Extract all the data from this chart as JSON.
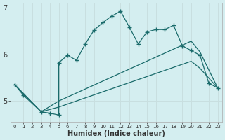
{
  "xlabel": "Humidex (Indice chaleur)",
  "bg_color": "#d4eef0",
  "line_color": "#1a6b6b",
  "grid_color": "#c8dfe0",
  "ylim": [
    4.55,
    7.1
  ],
  "xlim": [
    -0.5,
    23.5
  ],
  "yticks": [
    5,
    6,
    7
  ],
  "ytick_labels": [
    "5",
    "6",
    "7"
  ],
  "xtick_labels": [
    "0",
    "1",
    "2",
    "3",
    "4",
    "5",
    "6",
    "7",
    "8",
    "9",
    "10",
    "11",
    "12",
    "13",
    "14",
    "15",
    "16",
    "17",
    "18",
    "19",
    "20",
    "21",
    "22",
    "23"
  ],
  "line1_x": [
    0,
    1,
    3,
    4,
    5,
    5,
    6,
    7,
    8,
    9,
    10,
    11,
    12,
    13,
    14,
    15,
    16,
    17,
    18,
    19,
    20,
    21,
    22,
    23
  ],
  "line1_y": [
    5.35,
    5.12,
    4.77,
    4.74,
    4.7,
    5.82,
    5.98,
    5.87,
    6.22,
    6.52,
    6.68,
    6.82,
    6.92,
    6.58,
    6.22,
    6.48,
    6.53,
    6.53,
    6.62,
    6.18,
    6.08,
    5.98,
    5.38,
    5.28
  ],
  "line2_x": [
    0,
    3,
    5,
    20,
    21,
    23
  ],
  "line2_y": [
    5.35,
    4.77,
    5.0,
    6.28,
    6.05,
    5.28
  ],
  "line3_x": [
    0,
    3,
    5,
    20,
    21,
    23
  ],
  "line3_y": [
    5.35,
    4.77,
    4.87,
    5.85,
    5.7,
    5.28
  ]
}
